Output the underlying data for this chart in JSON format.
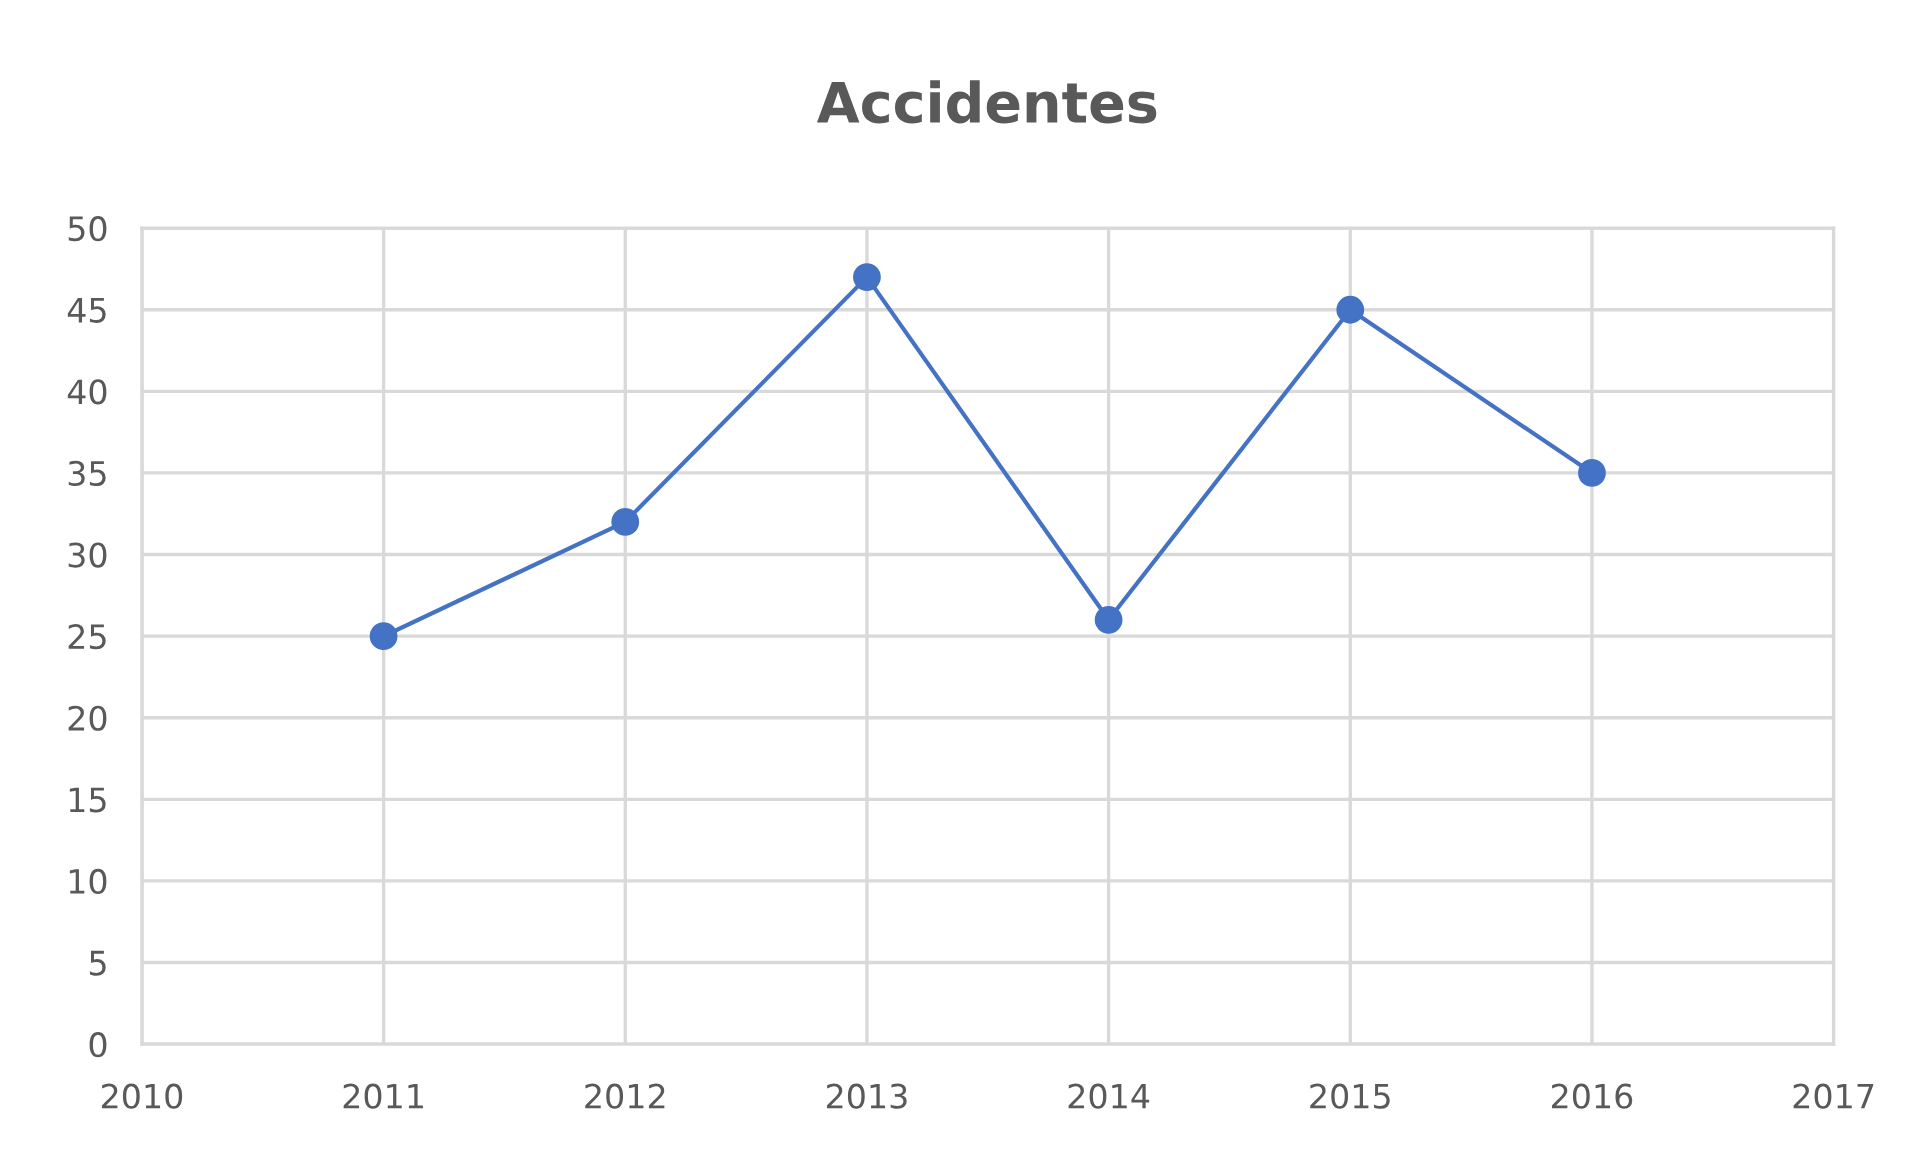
{
  "chart_data": {
    "type": "line",
    "title": "Accidentes",
    "x": [
      2011,
      2012,
      2013,
      2014,
      2015,
      2016
    ],
    "series": [
      {
        "color": "#4472c4",
        "values": [
          25,
          32,
          47,
          26,
          45,
          35
        ]
      }
    ],
    "xlim": [
      2010,
      2017
    ],
    "xticks": [
      2010,
      2011,
      2012,
      2013,
      2014,
      2015,
      2016,
      2017
    ],
    "ylim": [
      0,
      50
    ],
    "yticks": [
      0,
      5,
      10,
      15,
      20,
      25,
      30,
      35,
      40,
      45,
      50
    ],
    "grid": true,
    "marker": "circle",
    "line_style": "solid"
  }
}
